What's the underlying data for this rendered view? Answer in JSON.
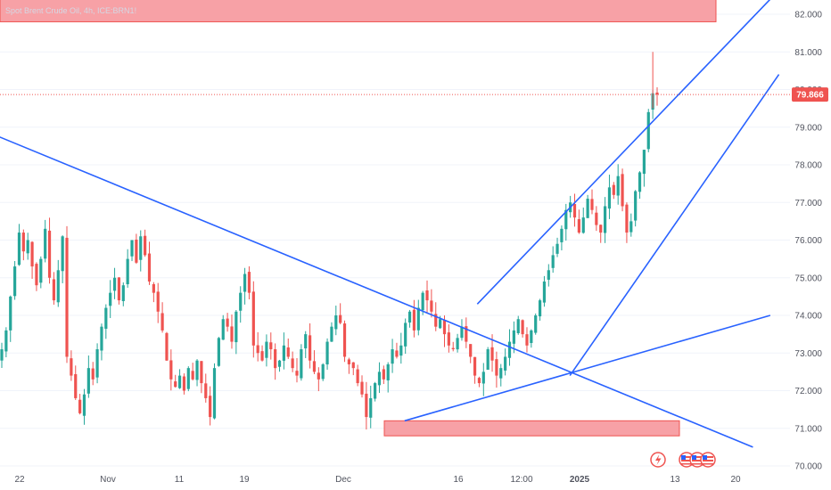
{
  "header": {
    "symbol_text": "Spot Brent Crude Oil, 4h, ICE:BRN1!"
  },
  "chart_data": {
    "type": "candlestick",
    "yaxis": {
      "ticks": [
        "82.000",
        "81.000",
        "80.000",
        "79.000",
        "78.000",
        "77.000",
        "76.000",
        "75.000",
        "74.000",
        "73.000",
        "72.000",
        "71.000",
        "70.000"
      ],
      "ylim": [
        70.0,
        82.4
      ]
    },
    "xaxis": {
      "ticks": [
        {
          "label": "22",
          "bold": false
        },
        {
          "label": "Nov",
          "bold": false
        },
        {
          "label": "11",
          "bold": false
        },
        {
          "label": "19",
          "bold": false
        },
        {
          "label": "Dec",
          "bold": false
        },
        {
          "label": "16",
          "bold": false
        },
        {
          "label": "12:00",
          "bold": false
        },
        {
          "label": "2025",
          "bold": true
        },
        {
          "label": "13",
          "bold": false
        },
        {
          "label": "20",
          "bold": false
        }
      ]
    },
    "last_price": {
      "label": "79.866",
      "value": 79.866
    },
    "colors": {
      "up": "#26a69a",
      "down": "#ef5350",
      "trendline": "#2962ff",
      "zone": "#f7a1a6",
      "zone_border": "#ef5350",
      "last_price": "#ef5350"
    },
    "candles_close": [
      73.1,
      73.6,
      74.5,
      75.3,
      76.2,
      75.7,
      76.0,
      75.3,
      74.8,
      75.5,
      76.3,
      75.0,
      74.4,
      75.2,
      76.1,
      72.9,
      72.4,
      71.8,
      71.4,
      71.9,
      72.6,
      72.3,
      73.1,
      73.7,
      74.2,
      74.6,
      75.0,
      74.4,
      74.8,
      75.5,
      76.0,
      75.4,
      76.1,
      75.6,
      74.9,
      74.6,
      74.1,
      73.6,
      72.8,
      72.3,
      72.1,
      72.4,
      72.0,
      72.6,
      72.3,
      72.8,
      72.2,
      71.8,
      71.3,
      72.6,
      73.4,
      73.9,
      73.7,
      73.3,
      74.1,
      74.6,
      75.1,
      74.6,
      73.2,
      73.0,
      72.8,
      73.3,
      73.1,
      72.6,
      72.8,
      73.2,
      72.9,
      72.6,
      72.4,
      73.1,
      73.5,
      72.8,
      72.5,
      72.3,
      72.7,
      73.3,
      73.7,
      74.0,
      73.8,
      72.9,
      72.7,
      72.6,
      72.2,
      71.9,
      71.3,
      71.8,
      72.2,
      72.5,
      72.3,
      72.7,
      73.1,
      72.9,
      73.2,
      73.8,
      74.1,
      73.6,
      74.2,
      74.6,
      74.4,
      74.1,
      73.7,
      73.9,
      73.5,
      73.2,
      73.1,
      73.4,
      73.7,
      73.3,
      72.9,
      72.4,
      72.2,
      72.5,
      73.1,
      72.8,
      72.4,
      72.6,
      72.9,
      73.3,
      73.6,
      73.9,
      73.5,
      73.2,
      73.6,
      74.0,
      74.4,
      74.9,
      75.2,
      75.6,
      75.9,
      76.3,
      76.8,
      77.0,
      76.6,
      76.2,
      76.6,
      77.1,
      76.8,
      76.4,
      76.2,
      76.9,
      77.4,
      77.2,
      77.7,
      76.9,
      76.2,
      76.5,
      77.3,
      77.8,
      78.4,
      79.4,
      79.9,
      79.866
    ],
    "trendlines": [
      {
        "name": "descending-resistance",
        "points": [
          [
            "2024-10-16",
            79.1
          ],
          [
            "2025-01-22",
            70.5
          ]
        ]
      },
      {
        "name": "ascending-support",
        "points": [
          [
            "2024-12-09",
            71.2
          ],
          [
            "2025-01-24",
            74.0
          ]
        ]
      },
      {
        "name": "channel-upper",
        "points": [
          [
            "2024-12-19",
            74.3
          ],
          [
            "2025-01-24",
            82.4
          ]
        ]
      },
      {
        "name": "channel-lower",
        "points": [
          [
            "2024-12-31",
            72.4
          ],
          [
            "2025-01-25",
            80.4
          ]
        ]
      }
    ],
    "zones": [
      {
        "name": "support-zone",
        "y_range": [
          70.8,
          71.2
        ]
      },
      {
        "name": "resistance-zone",
        "y_range": [
          81.8,
          82.4
        ]
      }
    ]
  }
}
